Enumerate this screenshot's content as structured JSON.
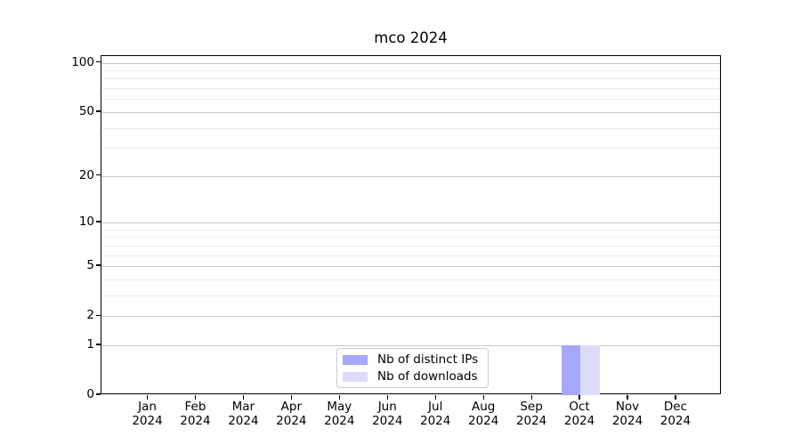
{
  "title": "mco 2024",
  "chart_data": {
    "type": "bar",
    "title": "mco 2024",
    "xlabel": "",
    "ylabel": "",
    "categories": [
      "Jan",
      "Feb",
      "Mar",
      "Apr",
      "May",
      "Jun",
      "Jul",
      "Aug",
      "Sep",
      "Oct",
      "Nov",
      "Dec"
    ],
    "year_label": "2024",
    "series": [
      {
        "name": "Nb of distinct IPs",
        "color": "#a6a6fa",
        "values": [
          0,
          0,
          0,
          0,
          0,
          0,
          0,
          0,
          0,
          1,
          0,
          0
        ]
      },
      {
        "name": "Nb of downloads",
        "color": "#dcdcfa",
        "values": [
          0,
          0,
          0,
          0,
          0,
          0,
          0,
          0,
          0,
          1,
          0,
          0
        ]
      }
    ],
    "yscale": "log10(1+value), linear-below-1 (symlog-like)",
    "ylim": [
      0,
      110
    ],
    "ytick_values": [
      0,
      1,
      2,
      5,
      10,
      20,
      50,
      100
    ],
    "ytick_labels": [
      "0",
      "1",
      "2",
      "5",
      "10",
      "20",
      "50",
      "100"
    ],
    "minor_gridline_values": [
      3,
      4,
      6,
      7,
      8,
      9,
      30,
      40,
      60,
      70,
      80,
      90
    ],
    "grid": "horizontal major and minor gridlines, no vertical grid",
    "legend_position": "inside bottom-center",
    "colors": {
      "background": "#ffffff",
      "axis": "#000000",
      "text": "#000000",
      "major_grid": "#c9c9c9",
      "minor_grid": "#ececec",
      "legend_border": "#cccccc"
    }
  }
}
